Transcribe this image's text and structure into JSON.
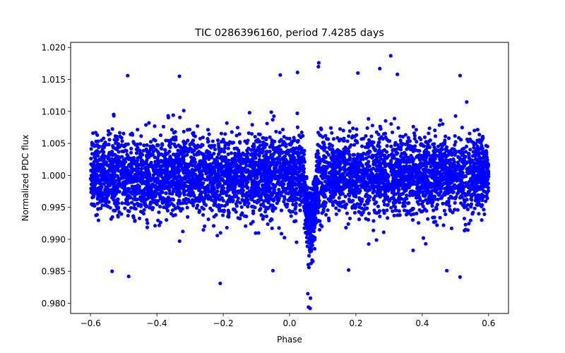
{
  "chart_data": {
    "type": "scatter",
    "title": "TIC 0286396160, period 7.4285 days",
    "xlabel": "Phase",
    "ylabel": "Normalized PDC flux",
    "xlim": [
      -0.66,
      0.66
    ],
    "ylim": [
      0.9784,
      1.0208
    ],
    "xticks": [
      -0.6,
      -0.4,
      -0.2,
      0.0,
      0.2,
      0.4,
      0.6
    ],
    "xtick_labels": [
      "−0.6",
      "−0.4",
      "−0.2",
      "0.0",
      "0.2",
      "0.4",
      "0.6"
    ],
    "yticks": [
      0.98,
      0.985,
      0.99,
      0.995,
      1.0,
      1.005,
      1.01,
      1.015,
      1.02
    ],
    "ytick_labels": [
      "0.980",
      "0.985",
      "0.990",
      "0.995",
      "1.000",
      "1.005",
      "1.010",
      "1.015",
      "1.020"
    ],
    "marker_color": "#0000ff",
    "grid": false,
    "phase_range": [
      -0.6,
      0.6
    ],
    "baseline_flux": 1.0,
    "scatter_sigma": 0.0031,
    "n_points": 5500,
    "transit": {
      "center_phase": 0.063,
      "depth": 0.0075,
      "half_width": 0.022
    },
    "notable_points": [
      {
        "x": 0.305,
        "y": 1.0187
      },
      {
        "x": 0.088,
        "y": 1.0176
      },
      {
        "x": 0.087,
        "y": 1.017
      },
      {
        "x": 0.272,
        "y": 1.0167
      },
      {
        "x": -0.488,
        "y": 1.0156
      },
      {
        "x": 0.514,
        "y": 1.0156
      },
      {
        "x": -0.332,
        "y": 1.0155
      },
      {
        "x": 0.206,
        "y": 1.016
      },
      {
        "x": 0.325,
        "y": 1.0158
      },
      {
        "x": -0.028,
        "y": 1.0157
      },
      {
        "x": 0.024,
        "y": 1.0161
      },
      {
        "x": -0.209,
        "y": 0.9831
      },
      {
        "x": 0.062,
        "y": 0.9792
      },
      {
        "x": 0.057,
        "y": 0.9794
      },
      {
        "x": 0.063,
        "y": 0.9808
      },
      {
        "x": 0.055,
        "y": 0.9815
      },
      {
        "x": -0.535,
        "y": 0.985
      },
      {
        "x": -0.485,
        "y": 0.9842
      },
      {
        "x": 0.514,
        "y": 0.9841
      },
      {
        "x": 0.474,
        "y": 0.9851
      },
      {
        "x": -0.05,
        "y": 0.9851
      },
      {
        "x": 0.178,
        "y": 0.9852
      }
    ]
  }
}
